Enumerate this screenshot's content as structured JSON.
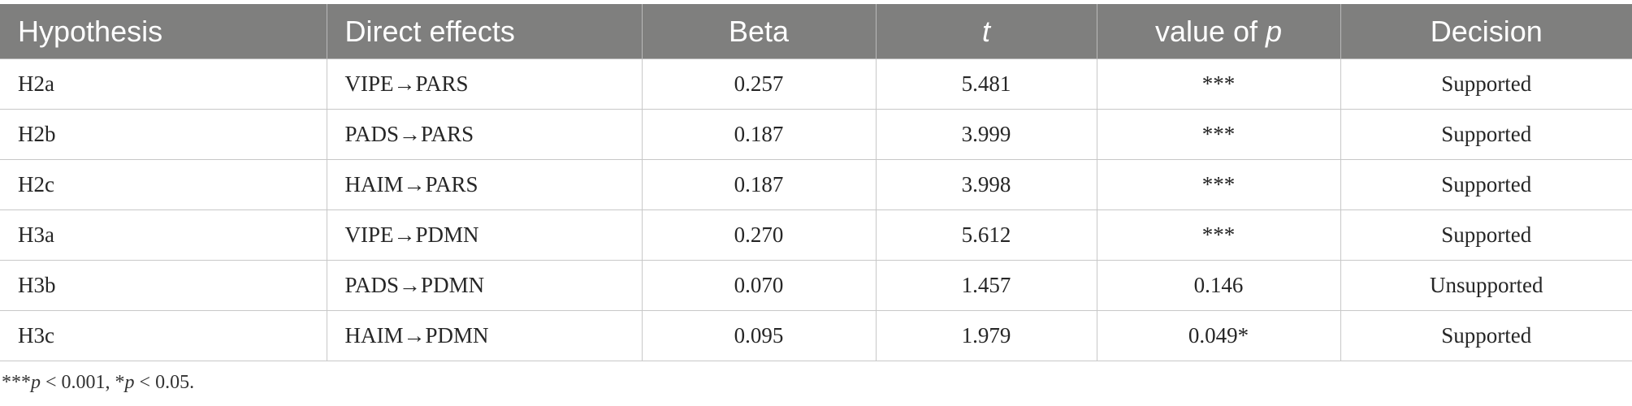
{
  "table": {
    "headers": {
      "hypothesis": "Hypothesis",
      "direct_effects": "Direct effects",
      "beta": "Beta",
      "t": "t",
      "p_value_prefix": "value of ",
      "p_value_var": "p",
      "decision": "Decision"
    },
    "rows": [
      {
        "hypothesis": "H2a",
        "effect": "VIPE→PARS",
        "beta": "0.257",
        "t": "5.481",
        "p": "***",
        "decision": "Supported"
      },
      {
        "hypothesis": "H2b",
        "effect": "PADS→PARS",
        "beta": "0.187",
        "t": "3.999",
        "p": "***",
        "decision": "Supported"
      },
      {
        "hypothesis": "H2c",
        "effect": "HAIM→PARS",
        "beta": "0.187",
        "t": "3.998",
        "p": "***",
        "decision": "Supported"
      },
      {
        "hypothesis": "H3a",
        "effect": "VIPE→PDMN",
        "beta": "0.270",
        "t": "5.612",
        "p": "***",
        "decision": "Supported"
      },
      {
        "hypothesis": "H3b",
        "effect": "PADS→PDMN",
        "beta": "0.070",
        "t": "1.457",
        "p": "0.146",
        "decision": "Unsupported"
      },
      {
        "hypothesis": "H3c",
        "effect": "HAIM→PDMN",
        "beta": "0.095",
        "t": "1.979",
        "p": "0.049*",
        "decision": "Supported"
      }
    ]
  },
  "footnote": {
    "part1_stars": "***",
    "part1_var": "p",
    "part1_rest": " < 0.001, ",
    "part2_stars": "*",
    "part2_var": "p",
    "part2_rest": " < 0.05."
  }
}
